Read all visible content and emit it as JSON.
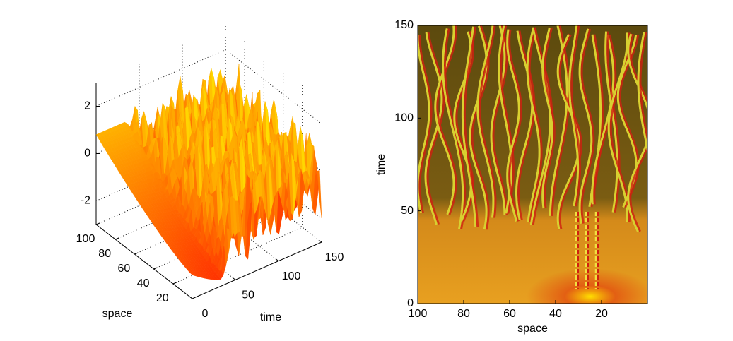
{
  "chart_data": [
    {
      "type": "surface",
      "xlabel": "time",
      "ylabel": "space",
      "xlim": [
        0,
        150
      ],
      "xticks": [
        0,
        50,
        100,
        150
      ],
      "ylim": [
        0,
        100
      ],
      "yticks": [
        20,
        40,
        60,
        80,
        100
      ],
      "zlim": [
        -3,
        3
      ],
      "zticks": [
        -2,
        0,
        2
      ],
      "grid": true
    },
    {
      "type": "image",
      "xlabel": "space",
      "ylabel": "time",
      "xlim": [
        100,
        0
      ],
      "xticks": [
        100,
        80,
        60,
        40,
        20
      ],
      "ylim": [
        0,
        150
      ],
      "yticks": [
        0,
        50,
        100,
        150
      ]
    }
  ]
}
